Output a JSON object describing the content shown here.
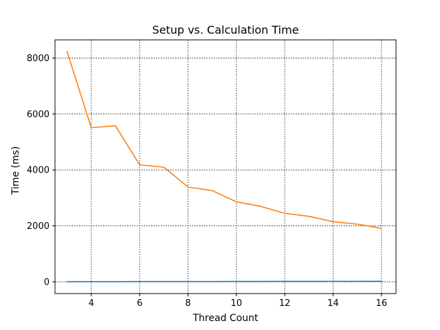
{
  "chart_data": {
    "type": "line",
    "title": "Setup vs. Calculation Time",
    "xlabel": "Thread Count",
    "ylabel": "Time (ms)",
    "xlim": [
      2.5,
      16.6
    ],
    "ylim": [
      -420,
      8650
    ],
    "x_ticks": [
      4,
      6,
      8,
      10,
      12,
      14,
      16
    ],
    "y_ticks": [
      0,
      2000,
      4000,
      6000,
      8000
    ],
    "x_tick_labels": [
      "4",
      "6",
      "8",
      "10",
      "12",
      "14",
      "16"
    ],
    "y_tick_labels": [
      "0",
      "2000",
      "4000",
      "6000",
      "8000"
    ],
    "grid": true,
    "x": [
      3,
      4,
      5,
      6,
      7,
      8,
      9,
      10,
      11,
      12,
      13,
      14,
      15,
      16
    ],
    "series": [
      {
        "color": "#1f77b4",
        "values": [
          5,
          5,
          5,
          8,
          8,
          10,
          10,
          12,
          12,
          14,
          14,
          16,
          16,
          18
        ]
      },
      {
        "color": "#ff7f0e",
        "values": [
          8230,
          5510,
          5580,
          4180,
          4100,
          3390,
          3260,
          2860,
          2700,
          2450,
          2340,
          2150,
          2060,
          1910
        ]
      }
    ]
  }
}
